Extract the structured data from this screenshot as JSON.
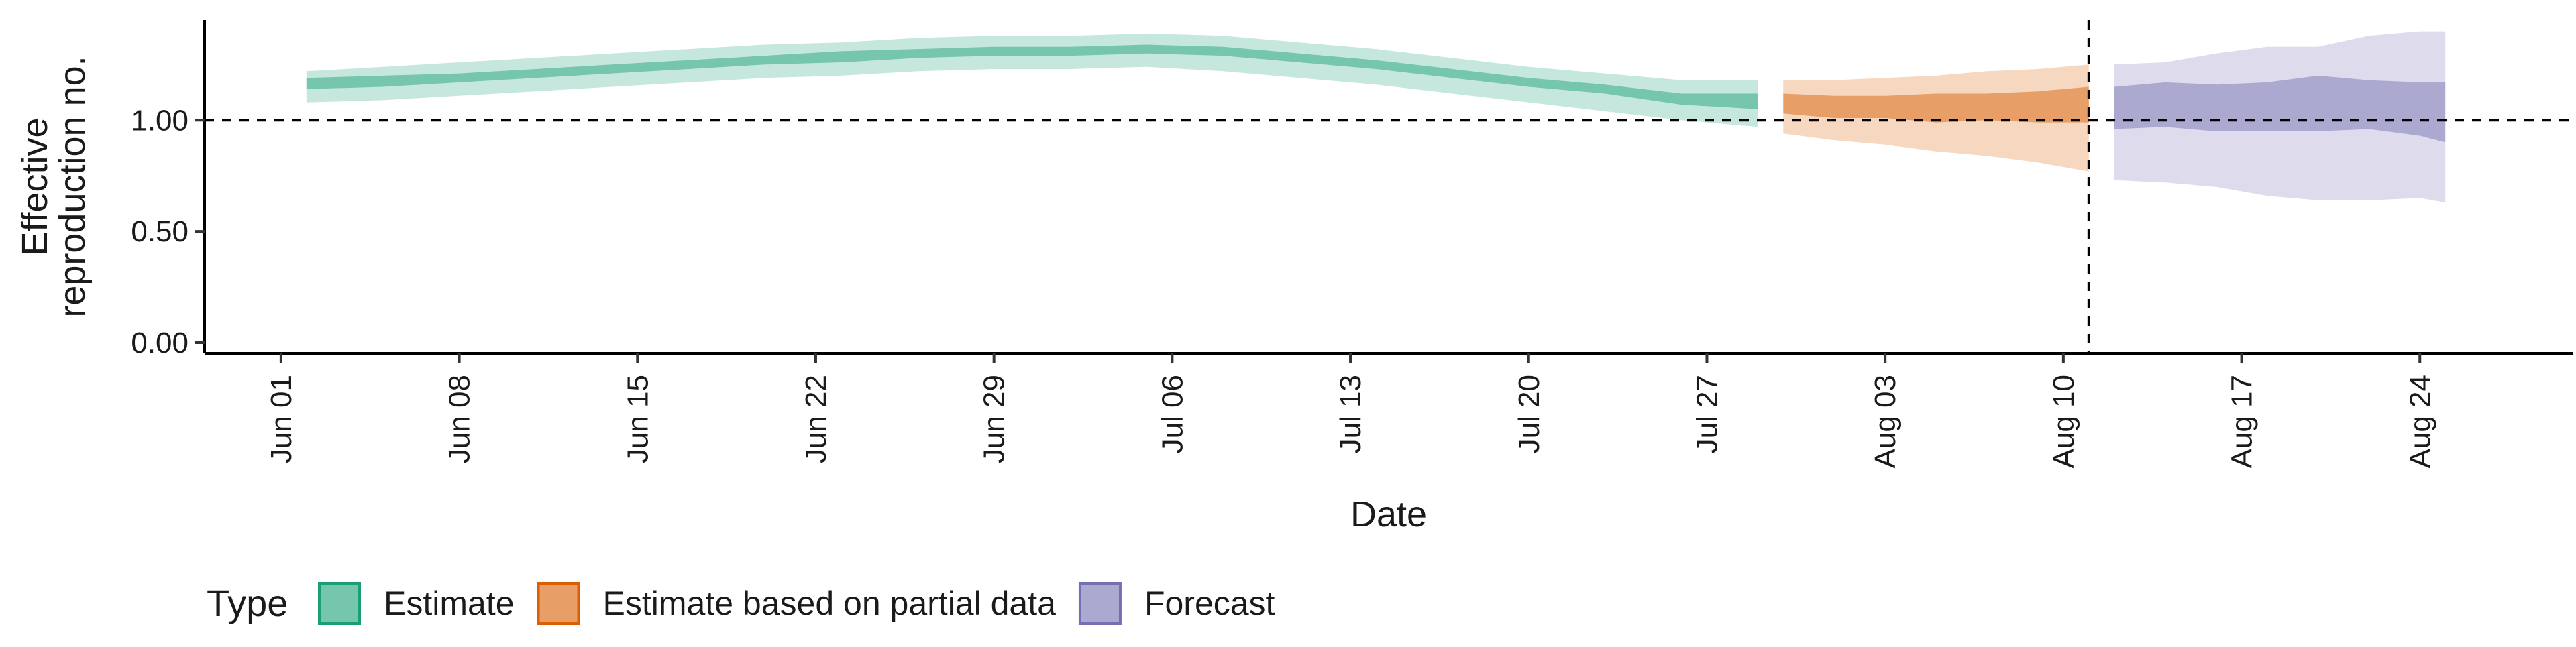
{
  "chart_data": {
    "type": "area",
    "xlabel": "Date",
    "ylabel_lines": [
      "Effective",
      "reproduction no."
    ],
    "x_range": [
      "2020-05-29",
      "2020-08-30"
    ],
    "ylim": [
      0,
      1.45
    ],
    "y_ticks": [
      0,
      0.5,
      1.0
    ],
    "y_tick_labels": [
      "0.00",
      "0.50",
      "1.00"
    ],
    "x_ticks": [
      "2020-06-01",
      "2020-06-08",
      "2020-06-15",
      "2020-06-22",
      "2020-06-29",
      "2020-07-06",
      "2020-07-13",
      "2020-07-20",
      "2020-07-27",
      "2020-08-03",
      "2020-08-10",
      "2020-08-17",
      "2020-08-24"
    ],
    "x_tick_labels": [
      "Jun 01",
      "Jun 08",
      "Jun 15",
      "Jun 22",
      "Jun 29",
      "Jul 06",
      "Jul 13",
      "Jul 20",
      "Jul 27",
      "Aug 03",
      "Aug 10",
      "Aug 17",
      "Aug 24"
    ],
    "reference_line_y": 1.0,
    "reference_line_date": "2020-08-11",
    "grid": false,
    "legend": {
      "title": "Type",
      "position": "bottom-left",
      "items": [
        "Estimate",
        "Estimate based on partial data",
        "Forecast"
      ]
    },
    "series": [
      {
        "name": "Estimate",
        "color": "#1b9e77",
        "dates": [
          "2020-06-02",
          "2020-06-05",
          "2020-06-08",
          "2020-06-11",
          "2020-06-14",
          "2020-06-17",
          "2020-06-20",
          "2020-06-23",
          "2020-06-26",
          "2020-06-29",
          "2020-07-02",
          "2020-07-05",
          "2020-07-08",
          "2020-07-11",
          "2020-07-14",
          "2020-07-17",
          "2020-07-20",
          "2020-07-23",
          "2020-07-26",
          "2020-07-29"
        ],
        "median": [
          1.16,
          1.17,
          1.19,
          1.21,
          1.23,
          1.25,
          1.27,
          1.28,
          1.3,
          1.31,
          1.31,
          1.32,
          1.31,
          1.28,
          1.25,
          1.21,
          1.17,
          1.14,
          1.1,
          1.09
        ],
        "inner_lower": [
          1.14,
          1.15,
          1.17,
          1.19,
          1.21,
          1.23,
          1.25,
          1.26,
          1.28,
          1.29,
          1.29,
          1.3,
          1.29,
          1.26,
          1.23,
          1.19,
          1.15,
          1.12,
          1.07,
          1.05
        ],
        "inner_upper": [
          1.19,
          1.2,
          1.21,
          1.23,
          1.25,
          1.27,
          1.29,
          1.31,
          1.32,
          1.33,
          1.33,
          1.34,
          1.33,
          1.3,
          1.27,
          1.23,
          1.19,
          1.16,
          1.12,
          1.12
        ],
        "outer_lower": [
          1.08,
          1.09,
          1.11,
          1.13,
          1.15,
          1.17,
          1.19,
          1.2,
          1.22,
          1.23,
          1.23,
          1.24,
          1.22,
          1.19,
          1.16,
          1.12,
          1.08,
          1.04,
          1.0,
          0.97
        ],
        "outer_upper": [
          1.22,
          1.24,
          1.26,
          1.28,
          1.3,
          1.32,
          1.34,
          1.35,
          1.37,
          1.38,
          1.38,
          1.39,
          1.38,
          1.35,
          1.32,
          1.28,
          1.24,
          1.21,
          1.18,
          1.18
        ]
      },
      {
        "name": "Estimate based on partial data",
        "color": "#d95f02",
        "dates": [
          "2020-07-30",
          "2020-08-01",
          "2020-08-03",
          "2020-08-05",
          "2020-08-07",
          "2020-08-09",
          "2020-08-11"
        ],
        "median": [
          1.08,
          1.06,
          1.07,
          1.07,
          1.08,
          1.08,
          1.1
        ],
        "inner_lower": [
          1.03,
          1.01,
          1.01,
          0.99,
          1.0,
          0.99,
          0.99
        ],
        "inner_upper": [
          1.12,
          1.11,
          1.11,
          1.12,
          1.12,
          1.13,
          1.15
        ],
        "outer_lower": [
          0.94,
          0.91,
          0.89,
          0.86,
          0.84,
          0.81,
          0.77
        ],
        "outer_upper": [
          1.18,
          1.18,
          1.19,
          1.2,
          1.22,
          1.23,
          1.25
        ]
      },
      {
        "name": "Forecast",
        "color": "#7570b3",
        "dates": [
          "2020-08-12",
          "2020-08-14",
          "2020-08-16",
          "2020-08-18",
          "2020-08-20",
          "2020-08-22",
          "2020-08-24",
          "2020-08-25"
        ],
        "median": [
          1.06,
          1.07,
          1.06,
          1.07,
          1.08,
          1.07,
          1.06,
          1.06
        ],
        "inner_lower": [
          0.96,
          0.97,
          0.95,
          0.95,
          0.95,
          0.96,
          0.93,
          0.9
        ],
        "inner_upper": [
          1.15,
          1.17,
          1.16,
          1.17,
          1.2,
          1.18,
          1.17,
          1.17
        ],
        "outer_lower": [
          0.73,
          0.72,
          0.7,
          0.66,
          0.64,
          0.64,
          0.65,
          0.63
        ],
        "outer_upper": [
          1.25,
          1.26,
          1.3,
          1.33,
          1.33,
          1.38,
          1.4,
          1.4
        ]
      }
    ]
  }
}
